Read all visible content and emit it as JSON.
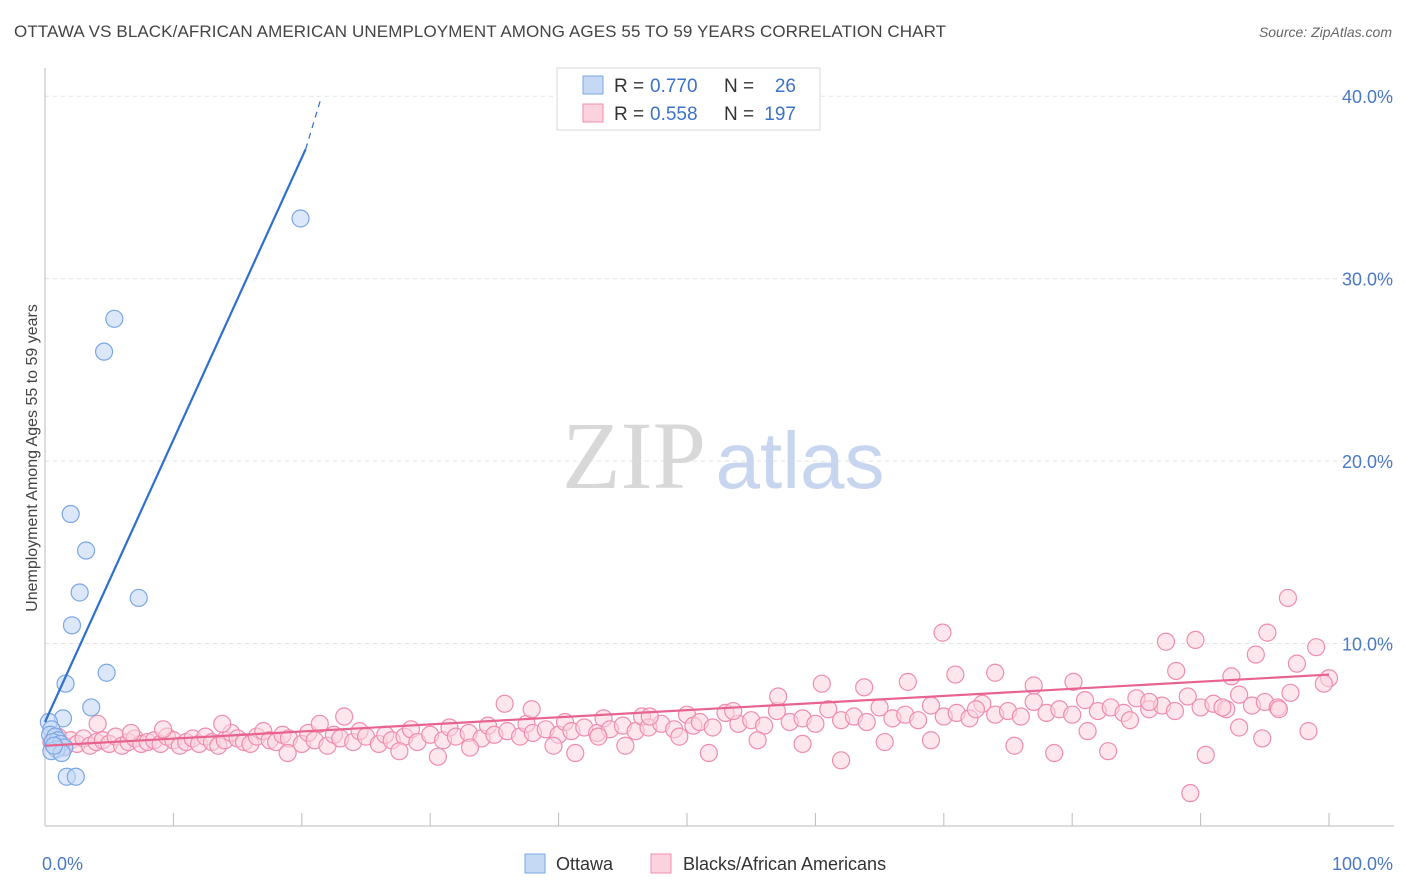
{
  "header": {
    "title": "OTTAWA VS BLACK/AFRICAN AMERICAN UNEMPLOYMENT AMONG AGES 55 TO 59 YEARS CORRELATION CHART",
    "source": "Source: ZipAtlas.com"
  },
  "watermark": {
    "zip": "ZIP",
    "atlas": "atlas"
  },
  "colors": {
    "ottawa_fill": "#c5d9f5",
    "ottawa_stroke": "#7ba7e6",
    "ottawa_line": "#2f6fce",
    "black_fill": "#fbd3df",
    "black_stroke": "#f08caf",
    "black_line": "#e8638f",
    "tick_label": "#4a78c8",
    "grid": "#e3e3e3"
  },
  "legend_top": {
    "rows": [
      {
        "r_label": "R =",
        "r_value": "0.770",
        "n_label": "N =",
        "n_value": "26"
      },
      {
        "r_label": "R =",
        "r_value": "0.558",
        "n_label": "N =",
        "n_value": "197"
      }
    ]
  },
  "chart_data": {
    "type": "scatter",
    "title": "OTTAWA VS BLACK/AFRICAN AMERICAN UNEMPLOYMENT AMONG AGES 55 TO 59 YEARS CORRELATION CHART",
    "xlabel": "",
    "ylabel": "Unemployment Among Ages 55 to 59 years",
    "xlim": [
      0,
      100
    ],
    "ylim": [
      0,
      41
    ],
    "x_tick_labels": [
      "0.0%",
      "100.0%"
    ],
    "y_ticks": [
      10,
      20,
      30,
      40
    ],
    "y_tick_labels": [
      "10.0%",
      "20.0%",
      "30.0%",
      "40.0%"
    ],
    "grid": true,
    "legend_position": "bottom-center",
    "series": [
      {
        "name": "Ottawa",
        "r": 0.77,
        "n": 26,
        "trend": {
          "x": [
            0,
            20.3
          ],
          "y": [
            5.7,
            37.1
          ],
          "dashed_to": [
            21.5,
            39.9
          ]
        },
        "points": [
          [
            19.9,
            33.3
          ],
          [
            5.4,
            27.8
          ],
          [
            4.6,
            26.0
          ],
          [
            2.0,
            17.1
          ],
          [
            3.2,
            15.1
          ],
          [
            2.7,
            12.8
          ],
          [
            7.3,
            12.5
          ],
          [
            2.1,
            11.0
          ],
          [
            1.6,
            7.8
          ],
          [
            4.8,
            8.4
          ],
          [
            3.6,
            6.5
          ],
          [
            1.4,
            5.9
          ],
          [
            0.3,
            5.7
          ],
          [
            0.5,
            5.3
          ],
          [
            0.4,
            5.0
          ],
          [
            0.8,
            4.9
          ],
          [
            1.0,
            4.7
          ],
          [
            0.6,
            4.6
          ],
          [
            1.2,
            4.5
          ],
          [
            1.5,
            4.3
          ],
          [
            0.9,
            4.2
          ],
          [
            0.5,
            4.1
          ],
          [
            1.3,
            4.0
          ],
          [
            0.7,
            4.4
          ],
          [
            1.7,
            2.7
          ],
          [
            2.4,
            2.7
          ]
        ]
      },
      {
        "name": "Blacks/African Americans",
        "r": 0.558,
        "n": 197,
        "trend": {
          "x": [
            0,
            100
          ],
          "y": [
            4.4,
            8.3
          ]
        },
        "points": [
          [
            0.5,
            4.6
          ],
          [
            1.0,
            4.9
          ],
          [
            1.5,
            4.4
          ],
          [
            2.0,
            4.7
          ],
          [
            2.5,
            4.5
          ],
          [
            3.0,
            4.8
          ],
          [
            3.5,
            4.4
          ],
          [
            4.0,
            4.6
          ],
          [
            4.5,
            4.7
          ],
          [
            5.0,
            4.5
          ],
          [
            5.5,
            4.9
          ],
          [
            6.0,
            4.4
          ],
          [
            6.5,
            4.6
          ],
          [
            7.0,
            4.8
          ],
          [
            7.5,
            4.5
          ],
          [
            8.0,
            4.6
          ],
          [
            8.5,
            4.7
          ],
          [
            9.0,
            4.5
          ],
          [
            9.5,
            4.9
          ],
          [
            10.0,
            4.7
          ],
          [
            10.5,
            4.4
          ],
          [
            11.0,
            4.6
          ],
          [
            11.5,
            4.8
          ],
          [
            12.0,
            4.5
          ],
          [
            12.5,
            4.9
          ],
          [
            13.0,
            4.6
          ],
          [
            13.5,
            4.4
          ],
          [
            14.0,
            4.7
          ],
          [
            14.5,
            5.1
          ],
          [
            15.0,
            4.8
          ],
          [
            15.5,
            4.6
          ],
          [
            16.0,
            4.5
          ],
          [
            16.5,
            4.9
          ],
          [
            17.0,
            5.2
          ],
          [
            17.5,
            4.7
          ],
          [
            18.0,
            4.6
          ],
          [
            18.5,
            5.0
          ],
          [
            19.0,
            4.8
          ],
          [
            20.0,
            4.5
          ],
          [
            20.5,
            5.1
          ],
          [
            21.0,
            4.7
          ],
          [
            22.0,
            4.4
          ],
          [
            22.5,
            5.0
          ],
          [
            23.0,
            4.8
          ],
          [
            24.0,
            4.6
          ],
          [
            24.5,
            5.2
          ],
          [
            25.0,
            4.9
          ],
          [
            26.0,
            4.5
          ],
          [
            26.5,
            5.0
          ],
          [
            27.0,
            4.7
          ],
          [
            28.0,
            4.9
          ],
          [
            28.5,
            5.3
          ],
          [
            29.0,
            4.6
          ],
          [
            30.0,
            5.0
          ],
          [
            31.0,
            4.7
          ],
          [
            31.5,
            5.4
          ],
          [
            32.0,
            4.9
          ],
          [
            33.0,
            5.1
          ],
          [
            34.0,
            4.8
          ],
          [
            34.5,
            5.5
          ],
          [
            35.0,
            5.0
          ],
          [
            36.0,
            5.2
          ],
          [
            37.0,
            4.9
          ],
          [
            37.5,
            5.6
          ],
          [
            38.0,
            5.1
          ],
          [
            39.0,
            5.3
          ],
          [
            40.0,
            5.0
          ],
          [
            40.5,
            5.7
          ],
          [
            41.0,
            5.2
          ],
          [
            42.0,
            5.4
          ],
          [
            43.0,
            5.1
          ],
          [
            43.5,
            5.9
          ],
          [
            44.0,
            5.3
          ],
          [
            45.0,
            5.5
          ],
          [
            46.0,
            5.2
          ],
          [
            46.5,
            6.0
          ],
          [
            47.0,
            5.4
          ],
          [
            48.0,
            5.6
          ],
          [
            49.0,
            5.3
          ],
          [
            50.0,
            6.1
          ],
          [
            50.5,
            5.5
          ],
          [
            51.0,
            5.7
          ],
          [
            52.0,
            5.4
          ],
          [
            53.0,
            6.2
          ],
          [
            54.0,
            5.6
          ],
          [
            55.0,
            5.8
          ],
          [
            56.0,
            5.5
          ],
          [
            57.0,
            6.3
          ],
          [
            58.0,
            5.7
          ],
          [
            59.0,
            5.9
          ],
          [
            60.0,
            5.6
          ],
          [
            61.0,
            6.4
          ],
          [
            62.0,
            5.8
          ],
          [
            63.0,
            6.0
          ],
          [
            64.0,
            5.7
          ],
          [
            65.0,
            6.5
          ],
          [
            66.0,
            5.9
          ],
          [
            67.0,
            6.1
          ],
          [
            68.0,
            5.8
          ],
          [
            69.0,
            6.6
          ],
          [
            70.0,
            6.0
          ],
          [
            71.0,
            6.2
          ],
          [
            72.0,
            5.9
          ],
          [
            73.0,
            6.7
          ],
          [
            74.0,
            6.1
          ],
          [
            75.0,
            6.3
          ],
          [
            76.0,
            6.0
          ],
          [
            77.0,
            6.8
          ],
          [
            78.0,
            6.2
          ],
          [
            79.0,
            6.4
          ],
          [
            80.0,
            6.1
          ],
          [
            81.0,
            6.9
          ],
          [
            82.0,
            6.3
          ],
          [
            83.0,
            6.5
          ],
          [
            84.0,
            6.2
          ],
          [
            85.0,
            7.0
          ],
          [
            86.0,
            6.4
          ],
          [
            87.0,
            6.6
          ],
          [
            88.0,
            6.3
          ],
          [
            89.0,
            7.1
          ],
          [
            90.0,
            6.5
          ],
          [
            91.0,
            6.7
          ],
          [
            92.0,
            6.4
          ],
          [
            93.0,
            7.2
          ],
          [
            94.0,
            6.6
          ],
          [
            95.0,
            6.8
          ],
          [
            96.0,
            6.5
          ],
          [
            97.0,
            7.3
          ],
          [
            4.1,
            5.6
          ],
          [
            6.7,
            5.1
          ],
          [
            9.2,
            5.3
          ],
          [
            13.8,
            5.6
          ],
          [
            18.9,
            4.0
          ],
          [
            21.4,
            5.6
          ],
          [
            23.3,
            6.0
          ],
          [
            27.6,
            4.1
          ],
          [
            30.6,
            3.8
          ],
          [
            33.1,
            4.3
          ],
          [
            35.8,
            6.7
          ],
          [
            37.9,
            6.4
          ],
          [
            39.6,
            4.4
          ],
          [
            41.3,
            4.0
          ],
          [
            43.1,
            4.9
          ],
          [
            45.2,
            4.4
          ],
          [
            47.1,
            6.0
          ],
          [
            49.4,
            4.9
          ],
          [
            51.7,
            4.0
          ],
          [
            53.6,
            6.3
          ],
          [
            55.5,
            4.7
          ],
          [
            57.1,
            7.1
          ],
          [
            59.0,
            4.5
          ],
          [
            60.5,
            7.8
          ],
          [
            62.0,
            3.6
          ],
          [
            63.8,
            7.6
          ],
          [
            65.4,
            4.6
          ],
          [
            67.2,
            7.9
          ],
          [
            69.0,
            4.7
          ],
          [
            69.9,
            10.6
          ],
          [
            70.9,
            8.3
          ],
          [
            72.5,
            6.4
          ],
          [
            74.0,
            8.4
          ],
          [
            75.5,
            4.4
          ],
          [
            77.0,
            7.7
          ],
          [
            78.6,
            4.0
          ],
          [
            80.1,
            7.9
          ],
          [
            81.2,
            5.2
          ],
          [
            82.8,
            4.1
          ],
          [
            84.5,
            5.8
          ],
          [
            86.0,
            6.8
          ],
          [
            87.3,
            10.1
          ],
          [
            88.1,
            8.5
          ],
          [
            89.6,
            10.2
          ],
          [
            90.4,
            3.9
          ],
          [
            91.7,
            6.5
          ],
          [
            93.0,
            5.4
          ],
          [
            94.3,
            9.4
          ],
          [
            95.2,
            10.6
          ],
          [
            96.8,
            12.5
          ],
          [
            97.5,
            8.9
          ],
          [
            99.0,
            9.8
          ],
          [
            100.0,
            8.1
          ],
          [
            89.2,
            1.8
          ],
          [
            92.4,
            8.2
          ],
          [
            94.8,
            4.8
          ],
          [
            96.1,
            6.4
          ],
          [
            98.4,
            5.2
          ],
          [
            99.6,
            7.8
          ]
        ]
      }
    ]
  },
  "bottom_legend": {
    "items": [
      "Ottawa",
      "Blacks/African Americans"
    ]
  }
}
